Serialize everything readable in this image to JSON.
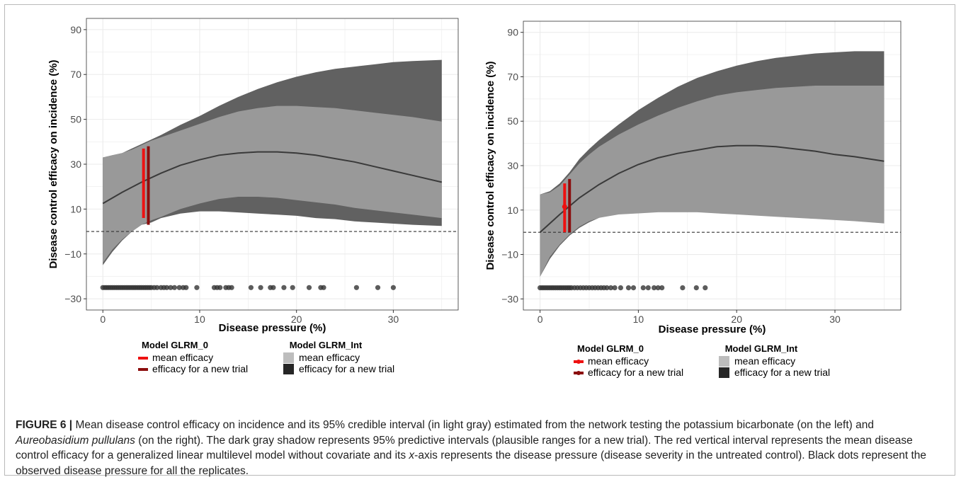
{
  "caption": {
    "label": "FIGURE 6 |",
    "parts": [
      {
        "text": " Mean disease control efficacy on incidence and its 95% credible interval (in light gray) estimated from the network testing the potassium bicarbonate (on the left) and ",
        "italic": false
      },
      {
        "text": "Aureobasidium pullulans",
        "italic": true
      },
      {
        "text": " (on the right). The dark gray shadow represents 95% predictive intervals (plausible ranges for a new trial). The red vertical interval represents the mean disease control efficacy for a generalized linear multilevel model without covariate and its ",
        "italic": false
      },
      {
        "text": "x",
        "italic": true
      },
      {
        "text": "-axis represents the disease pressure (disease severity in the untreated control). Black dots represent the observed disease pressure for all the replicates.",
        "italic": false
      }
    ]
  },
  "colors": {
    "dark_band": "#616161",
    "light_band": "#999999",
    "mean_line": "#3a3a3a",
    "mean_efficacy_red": "#ee1111",
    "new_trial_darkred": "#8b0d0d",
    "points": "#333333",
    "grid": "#ebebeb",
    "legend_light": "#bdbdbd",
    "legend_dark": "#262626"
  },
  "chart_data": [
    {
      "type": "area",
      "panel": "left",
      "xlabel": "Disease pressure (%)",
      "ylabel": "Disease control efficacy on incidence (%)",
      "xlim": [
        -1.7,
        36.7
      ],
      "ylim": [
        -35,
        95
      ],
      "x_ticks": [
        0,
        10,
        20,
        30
      ],
      "x_tick_labels": [
        "0",
        "10",
        "20",
        "30"
      ],
      "y_ticks": [
        -30,
        -10,
        10,
        30,
        50,
        70,
        90
      ],
      "y_tick_labels": [
        "−30",
        "−10",
        "10",
        "30",
        "50",
        "70",
        "90"
      ],
      "reference_line_y": 0,
      "grid": true,
      "prediction_interval": {
        "x": [
          0,
          1,
          2,
          3,
          4,
          5,
          6,
          8,
          10,
          12,
          14,
          16,
          18,
          20,
          22,
          24,
          26,
          28,
          30,
          32,
          35
        ],
        "upper": [
          33,
          34,
          35,
          37,
          39,
          41,
          43,
          47.5,
          51.5,
          56,
          60,
          63.5,
          66.5,
          69,
          71,
          72.5,
          73.5,
          74.5,
          75.5,
          76,
          76.5
        ],
        "lower": [
          -15,
          -9,
          -4,
          0,
          3,
          4,
          6,
          8,
          9,
          9,
          8.5,
          8,
          7.5,
          7,
          6,
          5.5,
          4.5,
          4,
          3.5,
          3,
          2.5
        ]
      },
      "credible_interval": {
        "x": [
          0,
          1,
          2,
          3,
          4,
          5,
          6,
          8,
          10,
          12,
          14,
          16,
          18,
          20,
          22,
          24,
          26,
          28,
          30,
          32,
          35
        ],
        "upper": [
          33,
          34,
          35,
          36.5,
          38.5,
          40.5,
          42,
          45,
          48,
          51,
          53.5,
          55,
          56,
          56,
          55.5,
          55,
          54,
          53,
          52,
          51,
          49
        ],
        "lower": [
          -14,
          -8,
          -3.5,
          0,
          3,
          5,
          6.5,
          10,
          12.5,
          14.5,
          15.5,
          15.5,
          15,
          14,
          13,
          12,
          10.5,
          9.5,
          8.5,
          7.5,
          6
        ]
      },
      "mean_curve": {
        "x": [
          0,
          2,
          4,
          6,
          8,
          10,
          12,
          14,
          16,
          18,
          20,
          22,
          24,
          26,
          28,
          30,
          32,
          35
        ],
        "y": [
          12.5,
          17.5,
          22,
          26,
          29.5,
          32,
          34,
          35,
          35.5,
          35.5,
          35,
          34,
          32.5,
          31,
          29,
          27,
          25,
          22
        ]
      },
      "glrm_mean_interval": {
        "x": 4.2,
        "low": 6,
        "high": 37
      },
      "glrm_new_trial_interval": {
        "x": 4.7,
        "low": 3,
        "high": 38
      },
      "observed_points": {
        "y": -25,
        "x": [
          0,
          0.2,
          0.4,
          0.6,
          0.8,
          1.0,
          1.2,
          1.4,
          1.6,
          1.8,
          2.0,
          2.2,
          2.4,
          2.6,
          2.8,
          3.0,
          3.2,
          3.4,
          3.6,
          3.8,
          4.0,
          4.2,
          4.4,
          4.6,
          4.8,
          5.0,
          5.3,
          5.6,
          6.0,
          6.3,
          6.6,
          7.0,
          7.4,
          7.9,
          8.3,
          8.6,
          9.7,
          11.5,
          11.8,
          12.1,
          12.7,
          13.0,
          13.3,
          15.3,
          16.3,
          17.3,
          17.6,
          18.7,
          19.6,
          21.3,
          22.5,
          22.8,
          26.2,
          28.4,
          30.0
        ]
      },
      "legend": {
        "glrm_title": "Model GLRM_0",
        "glrm_items": [
          "mean efficacy",
          "efficacy for a new trial"
        ],
        "int_title": "Model GLRM_Int",
        "int_items": [
          "mean efficacy",
          "efficacy for a new trial"
        ]
      }
    },
    {
      "type": "area",
      "panel": "right",
      "xlabel": "Disease pressure (%)",
      "ylabel": "Disease control efficacy on incidence (%)",
      "xlim": [
        -1.7,
        36.7
      ],
      "ylim": [
        -35,
        95
      ],
      "x_ticks": [
        0,
        10,
        20,
        30
      ],
      "x_tick_labels": [
        "0",
        "10",
        "20",
        "30"
      ],
      "y_ticks": [
        -30,
        -10,
        10,
        30,
        50,
        70,
        90
      ],
      "y_tick_labels": [
        "−30",
        "−10",
        "10",
        "30",
        "50",
        "70",
        "90"
      ],
      "reference_line_y": 0,
      "grid": true,
      "prediction_interval": {
        "x": [
          0,
          1,
          2,
          3,
          4,
          5,
          6,
          8,
          10,
          12,
          14,
          16,
          18,
          20,
          22,
          24,
          26,
          28,
          30,
          32,
          35
        ],
        "upper": [
          17,
          18.5,
          22,
          27,
          33,
          37.5,
          41.5,
          48.5,
          55,
          60.5,
          65.5,
          69.5,
          72.5,
          75,
          77,
          78.5,
          79.5,
          80.5,
          81,
          81.5,
          81.5
        ],
        "lower": [
          -20,
          -12,
          -6,
          -1.5,
          2,
          4.5,
          6.5,
          9.5,
          11,
          11.5,
          12,
          12,
          12,
          11.5,
          11,
          10,
          9,
          8,
          7,
          6,
          4
        ]
      },
      "credible_interval": {
        "x": [
          0,
          1,
          2,
          3,
          4,
          5,
          6,
          8,
          10,
          12,
          14,
          16,
          18,
          20,
          22,
          24,
          26,
          28,
          30,
          32,
          35
        ],
        "upper": [
          17,
          18,
          21,
          26,
          31,
          35,
          38.5,
          44,
          48.5,
          52.5,
          56,
          59,
          61.5,
          63,
          64,
          65,
          65.5,
          66,
          66,
          66,
          66
        ],
        "lower": [
          -20,
          -11,
          -5.5,
          -1,
          2.5,
          5,
          6.5,
          8,
          8.5,
          9,
          9,
          9,
          8.5,
          8,
          7.5,
          7,
          6.5,
          6,
          5.5,
          5,
          4
        ]
      },
      "mean_curve": {
        "x": [
          0,
          2,
          4,
          6,
          8,
          10,
          12,
          14,
          16,
          18,
          20,
          22,
          24,
          26,
          28,
          30,
          32,
          35
        ],
        "y": [
          0,
          8,
          15.5,
          21.5,
          26.5,
          30.5,
          33.5,
          35.5,
          37,
          38.5,
          39,
          39,
          38.5,
          37.5,
          36.5,
          35,
          34,
          32
        ]
      },
      "glrm_mean_interval": {
        "x": 2.5,
        "low": 0,
        "high": 22,
        "mean": 11.5
      },
      "glrm_new_trial_interval": {
        "x": 3.0,
        "low": 0,
        "high": 24,
        "mean": 11.5
      },
      "observed_points": {
        "y": -25,
        "x": [
          0,
          0.2,
          0.4,
          0.6,
          0.8,
          1.0,
          1.2,
          1.4,
          1.6,
          1.8,
          2.0,
          2.2,
          2.4,
          2.6,
          2.8,
          3.0,
          3.2,
          3.5,
          3.8,
          4.1,
          4.4,
          4.7,
          5.0,
          5.3,
          5.6,
          5.9,
          6.2,
          6.5,
          6.8,
          7.2,
          7.6,
          8.2,
          9.0,
          9.5,
          10.5,
          11.0,
          11.6,
          12.0,
          12.4,
          14.5,
          15.9,
          16.8
        ]
      },
      "legend": {
        "glrm_title": "Model GLRM_0",
        "glrm_items": [
          "mean efficacy",
          "efficacy for a new trial"
        ],
        "int_title": "Model GLRM_Int",
        "int_items": [
          "mean efficacy",
          "efficacy for a new trial"
        ]
      }
    }
  ]
}
